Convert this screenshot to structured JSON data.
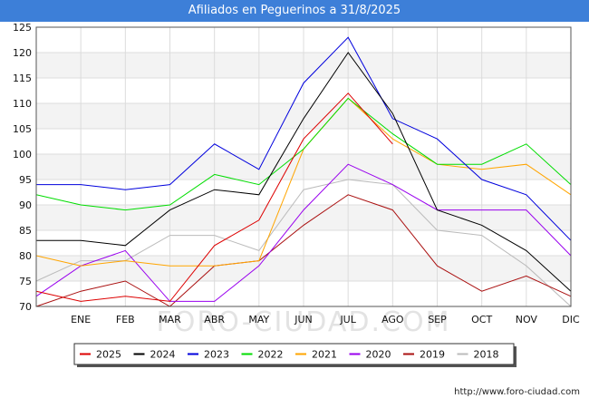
{
  "header": {
    "title": "Afiliados en Peguerinos a 31/8/2025"
  },
  "watermark": "FORO-CIUDAD.COM",
  "credit": "http://www.foro-ciudad.com",
  "chart_data": {
    "type": "line",
    "title": "Afiliados en Peguerinos a 31/8/2025",
    "categories": [
      "",
      "ENE",
      "FEB",
      "MAR",
      "ABR",
      "MAY",
      "JUN",
      "JUL",
      "AGO",
      "SEP",
      "OCT",
      "NOV",
      "DIC"
    ],
    "ylim": [
      70,
      125
    ],
    "yticks": [
      70,
      75,
      80,
      85,
      90,
      95,
      100,
      105,
      110,
      115,
      120,
      125
    ],
    "grid": true,
    "legend_position": "bottom",
    "series": [
      {
        "name": "2025",
        "color": "#dd0000",
        "values": [
          73,
          71,
          72,
          71,
          82,
          87,
          103,
          112,
          102,
          null,
          null,
          null,
          null
        ]
      },
      {
        "name": "2024",
        "color": "#000000",
        "values": [
          83,
          83,
          82,
          89,
          93,
          92,
          107,
          120,
          108,
          89,
          86,
          81,
          73
        ]
      },
      {
        "name": "2023",
        "color": "#0000dd",
        "values": [
          94,
          94,
          93,
          94,
          102,
          97,
          114,
          123,
          107,
          103,
          95,
          92,
          83
        ]
      },
      {
        "name": "2022",
        "color": "#00dd00",
        "values": [
          92,
          90,
          89,
          90,
          96,
          94,
          101,
          111,
          104,
          98,
          98,
          102,
          94
        ]
      },
      {
        "name": "2021",
        "color": "#ffa500",
        "values": [
          80,
          78,
          79,
          78,
          78,
          79,
          101,
          111,
          103,
          98,
          97,
          98,
          92
        ]
      },
      {
        "name": "2020",
        "color": "#9900ee",
        "values": [
          72,
          78,
          81,
          71,
          71,
          78,
          89,
          98,
          94,
          89,
          89,
          89,
          80
        ]
      },
      {
        "name": "2019",
        "color": "#aa1111",
        "values": [
          70,
          73,
          75,
          70,
          78,
          79,
          86,
          92,
          89,
          78,
          73,
          76,
          72
        ]
      },
      {
        "name": "2018",
        "color": "#bbbbbb",
        "values": [
          75,
          79,
          79,
          84,
          84,
          81,
          93,
          95,
          94,
          85,
          84,
          78,
          70
        ]
      }
    ]
  }
}
